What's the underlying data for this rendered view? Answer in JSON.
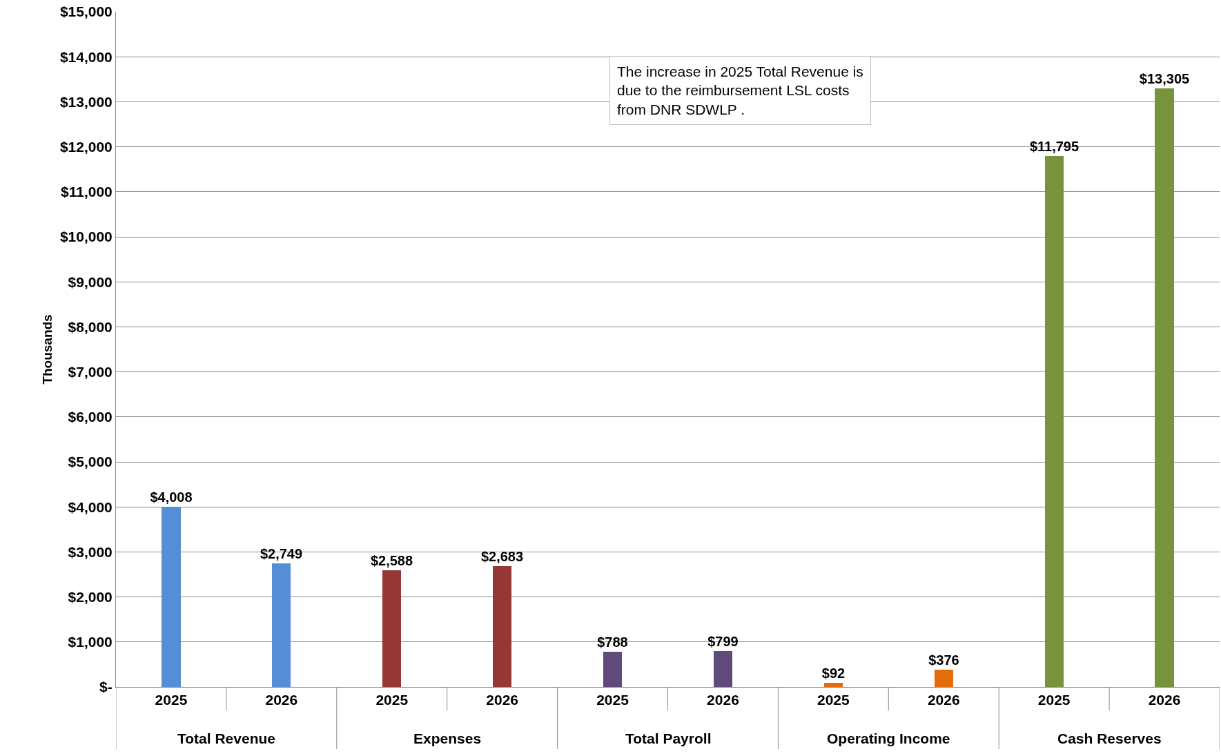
{
  "chart_data": {
    "type": "bar",
    "ylabel": "Thousands",
    "categories": [
      "2025",
      "2026",
      "2025",
      "2026",
      "2025",
      "2026",
      "2025",
      "2026",
      "2025",
      "2026"
    ],
    "values": [
      4008,
      2749,
      2588,
      2683,
      788,
      799,
      92,
      376,
      11795,
      13305
    ],
    "colors": [
      "#558ed5",
      "#558ed5",
      "#953735",
      "#953735",
      "#604a7b",
      "#604a7b",
      "#e46c0a",
      "#e46c0a",
      "#77933c",
      "#77933c"
    ],
    "value_labels": [
      "$4,008",
      "$2,749",
      "$2,588",
      "$2,683",
      "$788",
      "$799",
      "$92",
      "$376",
      "$11,795",
      "$13,305"
    ],
    "ylim": [
      0,
      15000
    ],
    "yticks": [
      {
        "value": 0,
        "label": "$-"
      },
      {
        "value": 1000,
        "label": "$1,000"
      },
      {
        "value": 2000,
        "label": "$2,000"
      },
      {
        "value": 3000,
        "label": "$3,000"
      },
      {
        "value": 4000,
        "label": "$4,000"
      },
      {
        "value": 5000,
        "label": "$5,000"
      },
      {
        "value": 6000,
        "label": "$6,000"
      },
      {
        "value": 7000,
        "label": "$7,000"
      },
      {
        "value": 8000,
        "label": "$8,000"
      },
      {
        "value": 9000,
        "label": "$9,000"
      },
      {
        "value": 10000,
        "label": "$10,000"
      },
      {
        "value": 11000,
        "label": "$11,000"
      },
      {
        "value": 12000,
        "label": "$12,000"
      },
      {
        "value": 13000,
        "label": "$13,000"
      },
      {
        "value": 14000,
        "label": "$14,000"
      },
      {
        "value": 15000,
        "label": "$15,000"
      }
    ],
    "grid": "y",
    "annotations": [
      "The increase in 2025 Total Revenue is due to the reimbursement LSL costs from DNR SDWLP .",
      "Total Revenue",
      "Expenses",
      "Total Payroll",
      "Operating Income",
      "Cash Reserves"
    ]
  }
}
